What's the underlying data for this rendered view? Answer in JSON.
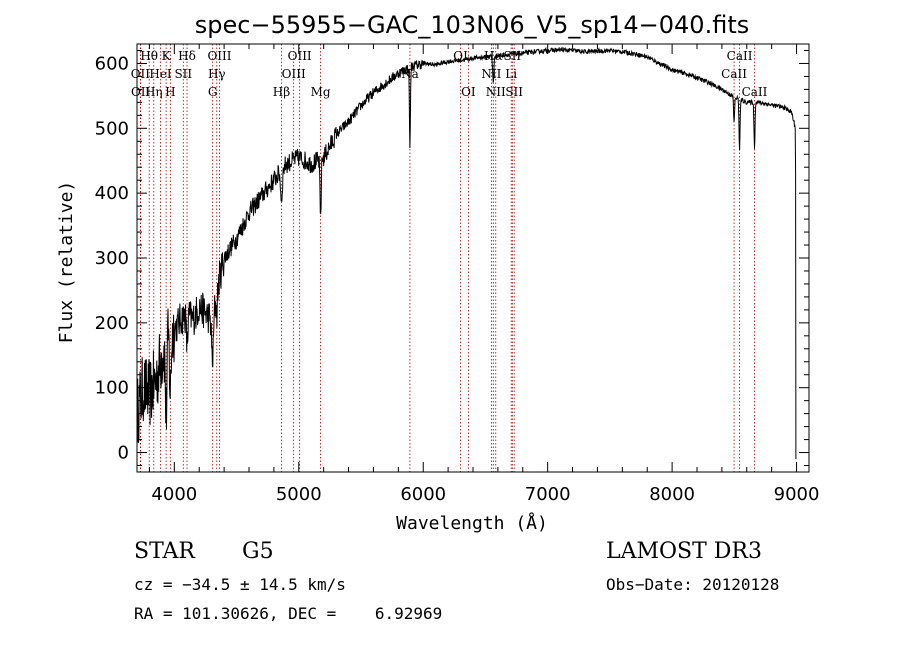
{
  "chart_data": {
    "type": "line",
    "title": "spec−55955−GAC_103N06_V5_sp14−040.fits",
    "xlabel": "Wavelength (Å)",
    "ylabel": "Flux (relative)",
    "xlim": [
      3700,
      9100
    ],
    "ylim": [
      -30,
      630
    ],
    "xticks": [
      4000,
      5000,
      6000,
      7000,
      8000,
      9000
    ],
    "yticks": [
      0,
      100,
      200,
      300,
      400,
      500,
      600
    ],
    "continuum": [
      [
        3700,
        60
      ],
      [
        3750,
        100
      ],
      [
        3800,
        90
      ],
      [
        3850,
        110
      ],
      [
        3900,
        150
      ],
      [
        3950,
        175
      ],
      [
        4000,
        190
      ],
      [
        4050,
        205
      ],
      [
        4100,
        215
      ],
      [
        4150,
        205
      ],
      [
        4200,
        225
      ],
      [
        4250,
        215
      ],
      [
        4300,
        205
      ],
      [
        4350,
        260
      ],
      [
        4400,
        300
      ],
      [
        4500,
        330
      ],
      [
        4600,
        370
      ],
      [
        4700,
        395
      ],
      [
        4800,
        420
      ],
      [
        4900,
        445
      ],
      [
        5000,
        455
      ],
      [
        5100,
        445
      ],
      [
        5200,
        455
      ],
      [
        5300,
        490
      ],
      [
        5400,
        510
      ],
      [
        5500,
        535
      ],
      [
        5600,
        555
      ],
      [
        5700,
        570
      ],
      [
        5800,
        585
      ],
      [
        5900,
        595
      ],
      [
        6000,
        600
      ],
      [
        6100,
        598
      ],
      [
        6200,
        603
      ],
      [
        6300,
        605
      ],
      [
        6400,
        608
      ],
      [
        6500,
        610
      ],
      [
        6600,
        612
      ],
      [
        6700,
        614
      ],
      [
        6800,
        616
      ],
      [
        6900,
        618
      ],
      [
        7000,
        620
      ],
      [
        7100,
        621
      ],
      [
        7200,
        620
      ],
      [
        7300,
        618
      ],
      [
        7400,
        619
      ],
      [
        7500,
        620
      ],
      [
        7600,
        618
      ],
      [
        7700,
        615
      ],
      [
        7800,
        610
      ],
      [
        7900,
        600
      ],
      [
        8000,
        590
      ],
      [
        8100,
        585
      ],
      [
        8200,
        578
      ],
      [
        8300,
        570
      ],
      [
        8400,
        560
      ],
      [
        8500,
        548
      ],
      [
        8600,
        540
      ],
      [
        8700,
        540
      ],
      [
        8800,
        536
      ],
      [
        8900,
        532
      ],
      [
        8960,
        525
      ],
      [
        8990,
        500
      ]
    ],
    "absorption": [
      {
        "center": 3934,
        "depth": 110,
        "width": 6
      },
      {
        "center": 3968,
        "depth": 90,
        "width": 6
      },
      {
        "center": 4102,
        "depth": 50,
        "width": 6
      },
      {
        "center": 4308,
        "depth": 70,
        "width": 8
      },
      {
        "center": 4341,
        "depth": 35,
        "width": 6
      },
      {
        "center": 4861,
        "depth": 45,
        "width": 7
      },
      {
        "center": 5175,
        "depth": 90,
        "width": 5
      },
      {
        "center": 5893,
        "depth": 120,
        "width": 4
      },
      {
        "center": 6563,
        "depth": 40,
        "width": 5
      },
      {
        "center": 8498,
        "depth": 40,
        "width": 4
      },
      {
        "center": 8542,
        "depth": 80,
        "width": 4
      },
      {
        "center": 8662,
        "depth": 70,
        "width": 4
      }
    ],
    "edges": {
      "start_drop": -20,
      "end_value": 430,
      "end_drop": -10
    },
    "lines": [
      {
        "label": "Hθ",
        "wave": 3798,
        "row": 0
      },
      {
        "label": "OII",
        "wave": 3727,
        "row": 1
      },
      {
        "label": "OII",
        "wave": 3729,
        "row": 2
      },
      {
        "label": "K",
        "wave": 3934,
        "row": 0
      },
      {
        "label": "HeI",
        "wave": 3889,
        "row": 1
      },
      {
        "label": "Hη",
        "wave": 3835,
        "row": 2
      },
      {
        "label": "SII",
        "wave": 4072,
        "row": 1
      },
      {
        "label": "H",
        "wave": 3968,
        "row": 2
      },
      {
        "label": "Hδ",
        "wave": 4102,
        "row": 0
      },
      {
        "label": "OIII",
        "wave": 4363,
        "row": 0
      },
      {
        "label": "Hγ",
        "wave": 4341,
        "row": 1
      },
      {
        "label": "G",
        "wave": 4308,
        "row": 2
      },
      {
        "label": "Hβ",
        "wave": 4861,
        "row": 2
      },
      {
        "label": "OIII",
        "wave": 5007,
        "row": 0
      },
      {
        "label": "OIII",
        "wave": 4959,
        "row": 1
      },
      {
        "label": "Mg",
        "wave": 5175,
        "row": 2
      },
      {
        "label": "Na",
        "wave": 5893,
        "row": 1
      },
      {
        "label": "OI",
        "wave": 6300,
        "row": 0
      },
      {
        "label": "OI",
        "wave": 6363,
        "row": 2
      },
      {
        "label": "Hα",
        "wave": 6563,
        "row": 0
      },
      {
        "label": "NII",
        "wave": 6548,
        "row": 1
      },
      {
        "label": "NII",
        "wave": 6583,
        "row": 2
      },
      {
        "label": "SII",
        "wave": 6716,
        "row": 0
      },
      {
        "label": "Li",
        "wave": 6707,
        "row": 1
      },
      {
        "label": "SII",
        "wave": 6731,
        "row": 2
      },
      {
        "label": "CaII",
        "wave": 8542,
        "row": 0
      },
      {
        "label": "CaII",
        "wave": 8498,
        "row": 1
      },
      {
        "label": "CaII",
        "wave": 8662,
        "row": 2
      }
    ]
  },
  "info": {
    "object_class": "STAR",
    "subclass": "G5",
    "survey": "LAMOST DR3",
    "cz": "cz = −34.5 ± 14.5 km/s",
    "obs_date": "Obs−Date: 20120128",
    "coords": "RA = 101.30626, DEC =    6.92969"
  }
}
